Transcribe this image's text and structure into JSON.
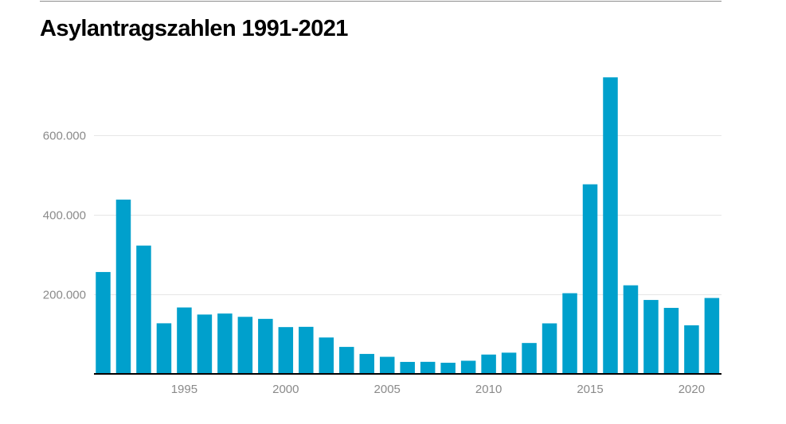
{
  "chart_data": {
    "type": "bar",
    "title": "Asylantragszahlen 1991-2021",
    "xlabel": "",
    "ylabel": "",
    "categories": [
      "1991",
      "1992",
      "1993",
      "1994",
      "1995",
      "1996",
      "1997",
      "1998",
      "1999",
      "2000",
      "2001",
      "2002",
      "2003",
      "2004",
      "2005",
      "2006",
      "2007",
      "2008",
      "2009",
      "2010",
      "2011",
      "2012",
      "2013",
      "2014",
      "2015",
      "2016",
      "2017",
      "2018",
      "2019",
      "2020",
      "2021"
    ],
    "values": [
      256112,
      438191,
      322599,
      127210,
      166951,
      149193,
      151700,
      143429,
      138319,
      117648,
      118306,
      91471,
      67848,
      50152,
      42908,
      30100,
      30303,
      28018,
      33033,
      48589,
      53347,
      77651,
      127023,
      202834,
      476649,
      745545,
      222683,
      185853,
      165938,
      122170,
      190816
    ],
    "xticks": [
      "1995",
      "2000",
      "2005",
      "2010",
      "2015",
      "2020"
    ],
    "yticks": [
      "200.000",
      "400.000",
      "600.000"
    ],
    "ytick_values": [
      200000,
      400000,
      600000
    ],
    "ylim": [
      0,
      740000
    ],
    "grid": true,
    "legend": "none",
    "bar_color": "#00a0cc",
    "grid_color": "#e6e6e6",
    "axis_color": "#000000"
  }
}
